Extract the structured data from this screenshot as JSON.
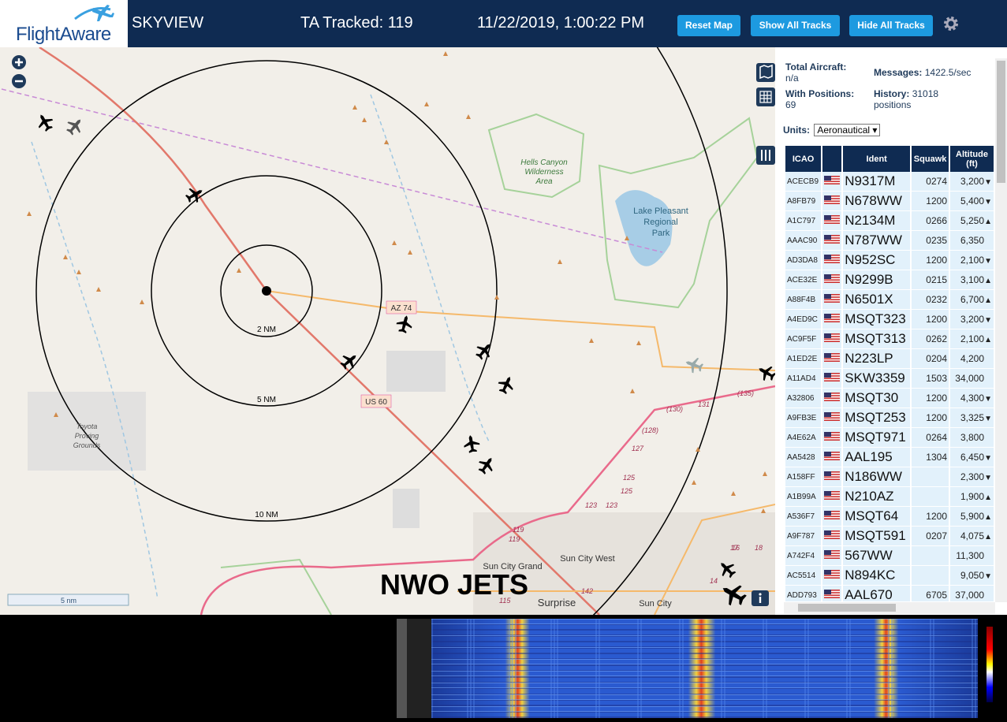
{
  "header": {
    "logo": "FlightAware",
    "app": "SKYVIEW",
    "tracked": "TA Tracked: 119",
    "datetime": "11/22/2019, 1:00:22 PM",
    "buttons": [
      "Reset Map",
      "Show All Tracks",
      "Hide All Tracks"
    ]
  },
  "map": {
    "ranges": [
      "2 NM",
      "5 NM",
      "10 NM"
    ],
    "roads": [
      "AZ 74",
      "US 60"
    ],
    "areas": [
      [
        "Hells Canyon",
        "Wilderness",
        "Area"
      ],
      [
        "Lake Pleasant",
        "Regional",
        "Park"
      ],
      [
        "Toyota",
        "Proving",
        "Grounds"
      ]
    ],
    "places": [
      "Sun City Grand",
      "Sun City West",
      "Surprise",
      "Sun City"
    ],
    "routes": [
      "119",
      "119",
      "123",
      "123",
      "125",
      "125",
      "127",
      "(128)",
      "(130)",
      "131",
      "(135)",
      "142",
      "115",
      "17",
      "16",
      "18",
      "14"
    ],
    "overlay": "NWO JETS",
    "scale": "5 nm"
  },
  "sidebar": {
    "stats": [
      {
        "label": "Total Aircraft:",
        "value": "n/a"
      },
      {
        "label": "Messages:",
        "value": "1422.5/sec"
      },
      {
        "label": "With Positions:",
        "value": "69"
      },
      {
        "label": "History:",
        "value": "31018 positions"
      }
    ],
    "units_label": "Units:",
    "units": "Aeronautical",
    "columns": [
      "ICAO",
      "Ident",
      "Squawk",
      "Altitude (ft)"
    ],
    "rows": [
      {
        "icao": "ACECB9",
        "ident": "N9317M",
        "squawk": "0274",
        "altitude": "3,200",
        "trend": "▼"
      },
      {
        "icao": "A8FB79",
        "ident": "N678WW",
        "squawk": "1200",
        "altitude": "5,400",
        "trend": "▼"
      },
      {
        "icao": "A1C797",
        "ident": "N2134M",
        "squawk": "0266",
        "altitude": "5,250",
        "trend": "▲"
      },
      {
        "icao": "AAAC90",
        "ident": "N787WW",
        "squawk": "0235",
        "altitude": "6,350"
      },
      {
        "icao": "AD3DA8",
        "ident": "N952SC",
        "squawk": "1200",
        "altitude": "2,100",
        "trend": "▼"
      },
      {
        "icao": "ACE32E",
        "ident": "N9299B",
        "squawk": "0215",
        "altitude": "3,100",
        "trend": "▲"
      },
      {
        "icao": "A88F4B",
        "ident": "N6501X",
        "squawk": "0232",
        "altitude": "6,700",
        "trend": "▲"
      },
      {
        "icao": "A4ED9C",
        "ident": "MSQT323",
        "squawk": "1200",
        "altitude": "3,200",
        "trend": "▼"
      },
      {
        "icao": "AC9F5F",
        "ident": "MSQT313",
        "squawk": "0262",
        "altitude": "2,100",
        "trend": "▲"
      },
      {
        "icao": "A1ED2E",
        "ident": "N223LP",
        "squawk": "0204",
        "altitude": "4,200"
      },
      {
        "icao": "A11AD4",
        "ident": "SKW3359",
        "squawk": "1503",
        "altitude": "34,000"
      },
      {
        "icao": "A32806",
        "ident": "MSQT30",
        "squawk": "1200",
        "altitude": "4,300",
        "trend": "▼"
      },
      {
        "icao": "A9FB3E",
        "ident": "MSQT253",
        "squawk": "1200",
        "altitude": "3,325",
        "trend": "▼"
      },
      {
        "icao": "A4E62A",
        "ident": "MSQT971",
        "squawk": "0264",
        "altitude": "3,800"
      },
      {
        "icao": "AA5428",
        "ident": "AAL195",
        "squawk": "1304",
        "altitude": "6,450",
        "trend": "▼"
      },
      {
        "icao": "A158FF",
        "ident": "N186WW",
        "altitude": "2,300",
        "trend": "▼"
      },
      {
        "icao": "A1B99A",
        "ident": "N210AZ",
        "altitude": "1,900",
        "trend": "▲"
      },
      {
        "icao": "A536F7",
        "ident": "MSQT64",
        "squawk": "1200",
        "altitude": "5,900",
        "trend": "▲"
      },
      {
        "icao": "A9F787",
        "ident": "MSQT591",
        "squawk": "0207",
        "altitude": "4,075",
        "trend": "▲"
      },
      {
        "icao": "A742F4",
        "ident": "567WW",
        "altitude": "11,300"
      },
      {
        "icao": "AC5514",
        "ident": "N894KC",
        "altitude": "9,050",
        "trend": "▼"
      },
      {
        "icao": "ADD793",
        "ident": "AAL670",
        "squawk": "6705",
        "altitude": "37,000"
      }
    ]
  }
}
